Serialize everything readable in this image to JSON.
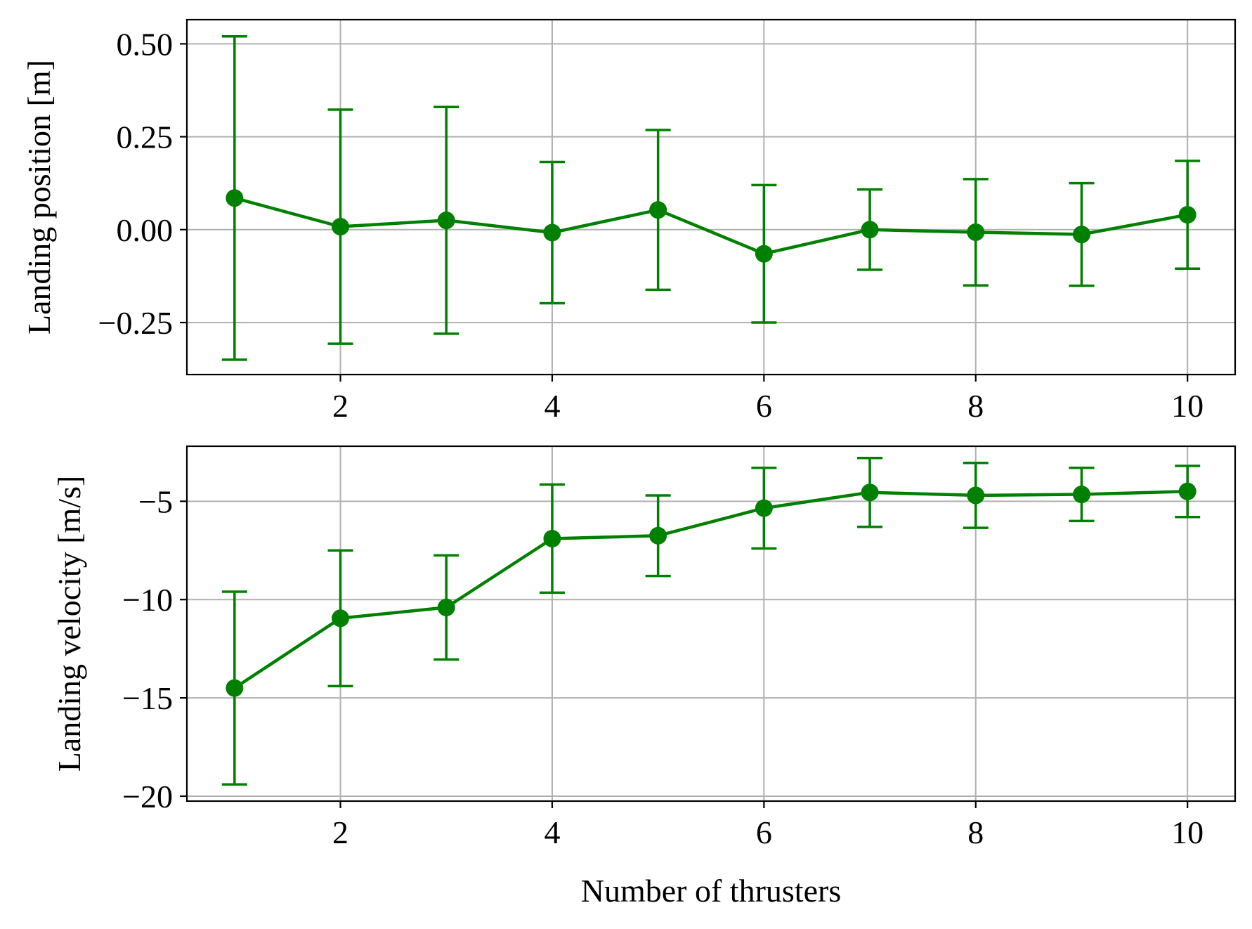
{
  "colors": {
    "series": "#008000",
    "grid": "#b0b0b0",
    "axes": "#000000"
  },
  "chart_data": [
    {
      "type": "line",
      "error_bars": true,
      "x": [
        1,
        2,
        3,
        4,
        5,
        6,
        7,
        8,
        9,
        10
      ],
      "y": [
        0.085,
        0.008,
        0.025,
        -0.008,
        0.053,
        -0.065,
        0.0,
        -0.007,
        -0.013,
        0.04
      ],
      "yerr": [
        0.435,
        0.315,
        0.305,
        0.19,
        0.215,
        0.185,
        0.108,
        0.143,
        0.138,
        0.145
      ],
      "xlabel": "",
      "ylabel": "Landing position [m]",
      "xlim": [
        0.55,
        10.45
      ],
      "ylim": [
        -0.39,
        0.565
      ],
      "xticks": [
        2,
        4,
        6,
        8,
        10
      ],
      "xtick_labels": [
        "2",
        "4",
        "6",
        "8",
        "10"
      ],
      "yticks": [
        -0.25,
        0.0,
        0.25,
        0.5
      ],
      "ytick_labels": [
        "−0.25",
        "0.00",
        "0.25",
        "0.50"
      ],
      "grid": true
    },
    {
      "type": "line",
      "error_bars": true,
      "x": [
        1,
        2,
        3,
        4,
        5,
        6,
        7,
        8,
        9,
        10
      ],
      "y": [
        -14.5,
        -10.95,
        -10.4,
        -6.9,
        -6.75,
        -5.35,
        -4.55,
        -4.7,
        -4.65,
        -4.5
      ],
      "yerr": [
        4.9,
        3.45,
        2.65,
        2.75,
        2.05,
        2.05,
        1.75,
        1.65,
        1.35,
        1.3
      ],
      "xlabel": "Number of thrusters",
      "ylabel": "Landing velocity [m/s]",
      "xlim": [
        0.55,
        10.45
      ],
      "ylim": [
        -20.25,
        -2.2
      ],
      "xticks": [
        2,
        4,
        6,
        8,
        10
      ],
      "xtick_labels": [
        "2",
        "4",
        "6",
        "8",
        "10"
      ],
      "yticks": [
        -20,
        -15,
        -10,
        -5
      ],
      "ytick_labels": [
        "−20",
        "−15",
        "−10",
        "−5"
      ],
      "grid": true
    }
  ]
}
